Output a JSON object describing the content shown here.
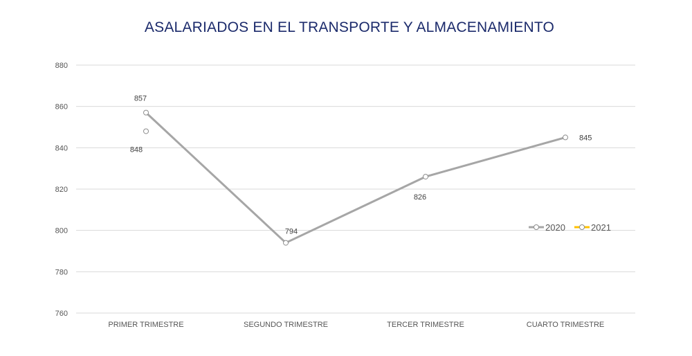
{
  "chart_data": {
    "type": "line",
    "title": "ASALARIADOS EN EL TRANSPORTE Y ALMACENAMIENTO",
    "xlabel": "",
    "ylabel": "",
    "categories": [
      "PRIMER TRIMESTRE",
      "SEGUNDO TRIMESTRE",
      "TERCER TRIMESTRE",
      "CUARTO TRIMESTRE"
    ],
    "ylim": [
      760,
      880
    ],
    "yticks": [
      760,
      780,
      800,
      820,
      840,
      860,
      880
    ],
    "grid": true,
    "legend_position": "right",
    "series": [
      {
        "name": "2020",
        "values": [
          857,
          794,
          826,
          845
        ],
        "color": "#a6a6a6",
        "labels": [
          "857",
          "794",
          "826",
          "845"
        ]
      },
      {
        "name": "2021",
        "values": [
          848,
          null,
          null,
          null
        ],
        "color": "#ffc000",
        "labels": [
          "848",
          "",
          "",
          ""
        ]
      }
    ]
  }
}
